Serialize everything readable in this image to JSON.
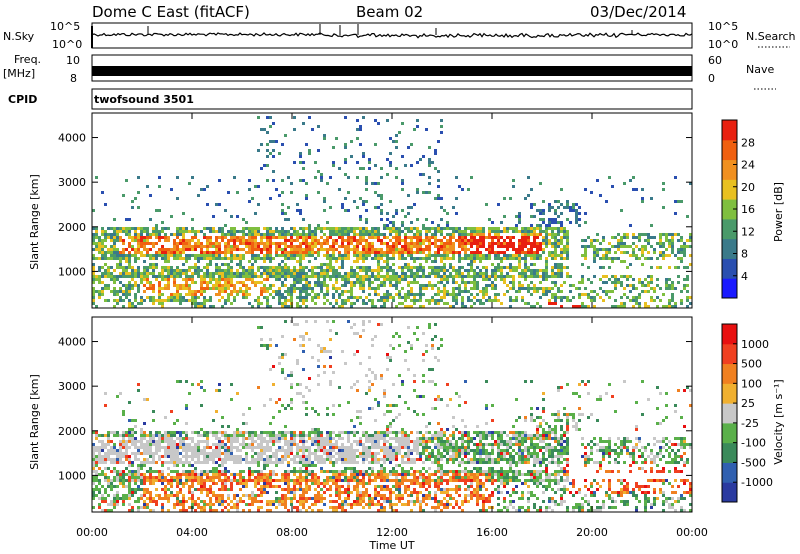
{
  "header": {
    "station": "Dome C East (fitACF)",
    "beam": "Beam 02",
    "date": "03/Dec/2014"
  },
  "top_panels": {
    "nsky_label": "N.Sky",
    "nsky_ticks": [
      "10^5",
      "10^0"
    ],
    "nsearch_label": "N.Search",
    "nsearch_ticks": [
      "10^5",
      "10^0"
    ],
    "freq_label": "Freq.",
    "freq_unit": "[MHz]",
    "freq_ticks": [
      "10",
      "8"
    ],
    "nave_label": "Nave",
    "nave_ticks": [
      "60",
      "0"
    ],
    "cpid_label": "CPID",
    "cpid_value": "twofsound 3501"
  },
  "colors": {
    "power_scale": [
      "#1a1aff",
      "#2a4fb0",
      "#3a7a8a",
      "#4a9a6a",
      "#7fbf3f",
      "#e8c020",
      "#f09020",
      "#f06010",
      "#e82010"
    ],
    "velocity_scale": [
      "#2a3aa0",
      "#3060b0",
      "#3a8a5a",
      "#5ab04a",
      "#c8c8c8",
      "#f0b030",
      "#f08020",
      "#f04020",
      "#e81010"
    ]
  },
  "chart_data": [
    {
      "type": "heatmap",
      "title": "Power",
      "xlabel": "",
      "ylabel": "Slant Range [km]",
      "x_ticks": [
        "00:00",
        "04:00",
        "08:00",
        "12:00",
        "16:00",
        "20:00",
        "00:00"
      ],
      "xlim_hours": [
        0,
        24
      ],
      "y_ticks": [
        "1000",
        "2000",
        "3000",
        "4000"
      ],
      "ylim_km": [
        180,
        4550
      ],
      "colorbar_label": "Power [dB]",
      "colorbar_ticks": [
        "28",
        "24",
        "20",
        "16",
        "12",
        "8",
        "4"
      ],
      "colorbar_range_db": [
        0,
        32
      ]
    },
    {
      "type": "heatmap",
      "title": "Velocity",
      "xlabel": "Time UT",
      "ylabel": "Slant Range [km]",
      "x_ticks": [
        "00:00",
        "04:00",
        "08:00",
        "12:00",
        "16:00",
        "20:00",
        "00:00"
      ],
      "xlim_hours": [
        0,
        24
      ],
      "y_ticks": [
        "1000",
        "2000",
        "3000",
        "4000"
      ],
      "ylim_km": [
        180,
        4550
      ],
      "colorbar_label": "Velocity [m s⁻¹]",
      "colorbar_ticks": [
        "1000",
        "500",
        "100",
        "25",
        "-25",
        "-100",
        "-500",
        "-1000"
      ]
    }
  ]
}
